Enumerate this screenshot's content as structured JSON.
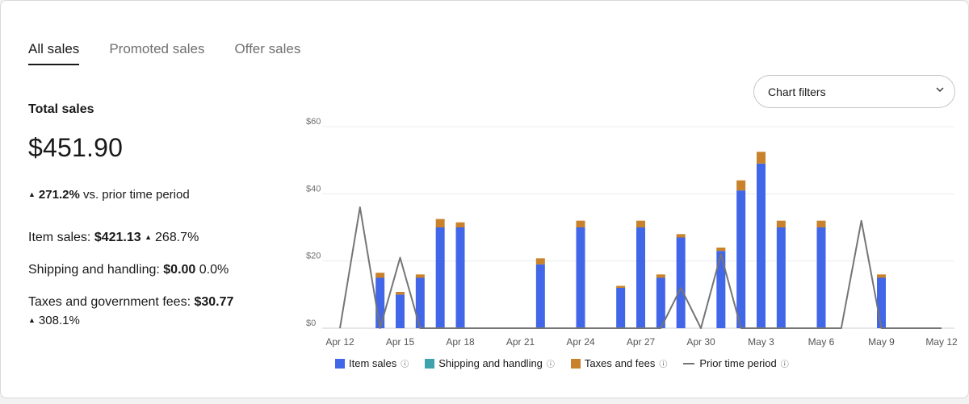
{
  "tabs": [
    {
      "label": "All sales",
      "active": true
    },
    {
      "label": "Promoted sales",
      "active": false
    },
    {
      "label": "Offer sales",
      "active": false
    }
  ],
  "summary": {
    "total_label": "Total sales",
    "total_value": "$451.90",
    "change_pct": "271.2%",
    "change_text": "vs. prior time period",
    "item_sales_label": "Item sales:",
    "item_sales_value": "$421.13",
    "item_sales_change": "268.7%",
    "shipping_label": "Shipping and handling:",
    "shipping_value": "$0.00",
    "shipping_change": "0.0%",
    "taxes_label": "Taxes and government fees:",
    "taxes_value": "$30.77",
    "taxes_change": "308.1%"
  },
  "filters": {
    "label": "Chart filters",
    "icon": "chevron-down-icon"
  },
  "legend": {
    "item_sales": "Item sales",
    "shipping": "Shipping and handling",
    "taxes": "Taxes and fees",
    "prior": "Prior time period",
    "info_icon": "info-icon"
  },
  "colors": {
    "item_sales": "#4166e8",
    "shipping": "#3fa3ad",
    "taxes": "#c8822b",
    "prior": "#757575"
  },
  "chart_data": {
    "type": "bar",
    "ylim": [
      0,
      60
    ],
    "y_ticks": [
      "$0",
      "$20",
      "$40",
      "$60"
    ],
    "x_tick_labels": [
      "Apr 12",
      "Apr 15",
      "Apr 18",
      "Apr 21",
      "Apr 24",
      "Apr 27",
      "Apr 30",
      "May 3",
      "May 6",
      "May 9",
      "May 12"
    ],
    "categories": [
      "Apr 12",
      "Apr 13",
      "Apr 14",
      "Apr 15",
      "Apr 16",
      "Apr 17",
      "Apr 18",
      "Apr 19",
      "Apr 20",
      "Apr 21",
      "Apr 22",
      "Apr 23",
      "Apr 24",
      "Apr 25",
      "Apr 26",
      "Apr 27",
      "Apr 28",
      "Apr 29",
      "Apr 30",
      "May 1",
      "May 2",
      "May 3",
      "May 4",
      "May 5",
      "May 6",
      "May 7",
      "May 8",
      "May 9",
      "May 10",
      "May 11",
      "May 12"
    ],
    "series": [
      {
        "name": "Item sales",
        "values": [
          0,
          0,
          15,
          10,
          15,
          30,
          30,
          0,
          0,
          0,
          19,
          0,
          30,
          0,
          12,
          30,
          15,
          27,
          0,
          23,
          41,
          49,
          30,
          0,
          30,
          0,
          0,
          15,
          0,
          0,
          0
        ]
      },
      {
        "name": "Shipping and handling",
        "values": [
          0,
          0,
          0,
          0,
          0,
          0,
          0,
          0,
          0,
          0,
          0,
          0,
          0,
          0,
          0,
          0,
          0,
          0,
          0,
          0,
          0,
          0,
          0,
          0,
          0,
          0,
          0,
          0,
          0,
          0,
          0
        ]
      },
      {
        "name": "Taxes and fees",
        "values": [
          0,
          0,
          1.5,
          0.8,
          1,
          2.5,
          1.5,
          0,
          0,
          0,
          1.8,
          0,
          2,
          0,
          0.6,
          2,
          1,
          1,
          0,
          1,
          3,
          3.5,
          2,
          0,
          2,
          0,
          0,
          1,
          0,
          0,
          0
        ]
      },
      {
        "name": "Prior time period",
        "values": [
          0,
          36,
          0,
          21,
          0,
          0,
          0,
          0,
          0,
          0,
          0,
          0,
          0,
          0,
          0,
          0,
          0,
          12,
          0,
          22,
          0,
          0,
          0,
          0,
          0,
          0,
          32,
          0,
          0,
          0,
          0
        ]
      }
    ]
  }
}
